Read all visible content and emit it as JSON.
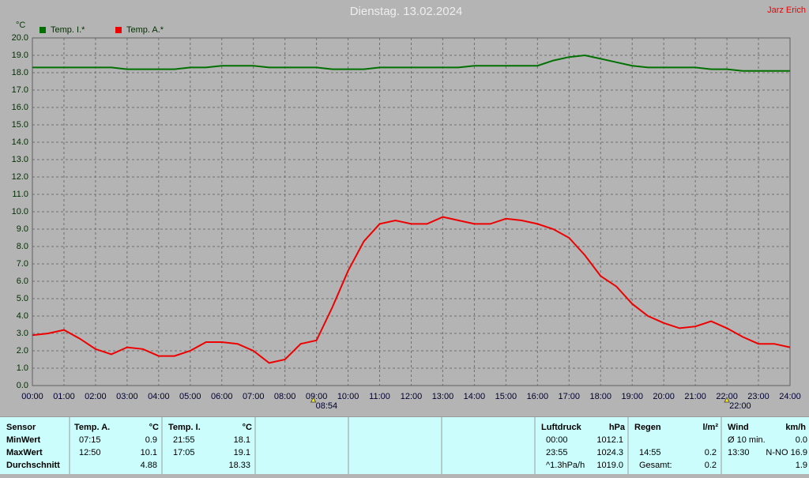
{
  "chart_data": {
    "type": "line",
    "title": "Dienstag. 13.02.2024",
    "author": "Jarz Erich",
    "y_unit": "°C",
    "x": [
      0,
      0.5,
      1,
      1.5,
      2,
      2.5,
      3,
      3.5,
      4,
      4.5,
      5,
      5.5,
      6,
      6.5,
      7,
      7.5,
      8,
      8.5,
      9,
      9.5,
      10,
      10.5,
      11,
      11.5,
      12,
      12.5,
      13,
      13.5,
      14,
      14.5,
      15,
      15.5,
      16,
      16.5,
      17,
      17.5,
      18,
      18.5,
      19,
      19.5,
      20,
      20.5,
      21,
      21.5,
      22,
      22.5,
      23,
      23.5,
      24
    ],
    "series": [
      {
        "name": "Temp. I.*",
        "color": "#007000",
        "values": [
          18.3,
          18.3,
          18.3,
          18.3,
          18.3,
          18.3,
          18.2,
          18.2,
          18.2,
          18.2,
          18.3,
          18.3,
          18.4,
          18.4,
          18.4,
          18.3,
          18.3,
          18.3,
          18.3,
          18.2,
          18.2,
          18.2,
          18.3,
          18.3,
          18.3,
          18.3,
          18.3,
          18.3,
          18.4,
          18.4,
          18.4,
          18.4,
          18.4,
          18.7,
          18.9,
          19.0,
          18.8,
          18.6,
          18.4,
          18.3,
          18.3,
          18.3,
          18.3,
          18.2,
          18.2,
          18.1,
          18.1,
          18.1,
          18.1
        ]
      },
      {
        "name": "Temp. A.*",
        "color": "#ee0000",
        "values": [
          2.9,
          3.0,
          3.2,
          2.7,
          2.1,
          1.8,
          2.2,
          2.1,
          1.7,
          1.7,
          2.0,
          2.5,
          2.5,
          2.4,
          2.0,
          1.3,
          1.5,
          2.4,
          2.6,
          4.5,
          6.6,
          8.3,
          9.3,
          9.5,
          9.3,
          9.3,
          9.7,
          9.5,
          9.3,
          9.3,
          9.6,
          9.5,
          9.3,
          9.0,
          8.5,
          7.5,
          6.3,
          5.7,
          4.7,
          4.0,
          3.6,
          3.3,
          3.4,
          3.7,
          3.3,
          2.8,
          2.4,
          2.4,
          2.2
        ]
      }
    ],
    "xlim": [
      0,
      24
    ],
    "xticks": [
      {
        "value": 0,
        "label": "00:00"
      },
      {
        "value": 1,
        "label": "01:00"
      },
      {
        "value": 2,
        "label": "02:00"
      },
      {
        "value": 3,
        "label": "03:00"
      },
      {
        "value": 4,
        "label": "04:00"
      },
      {
        "value": 5,
        "label": "05:00"
      },
      {
        "value": 6,
        "label": "06:00"
      },
      {
        "value": 7,
        "label": "07:00"
      },
      {
        "value": 8,
        "label": "08:00"
      },
      {
        "value": 9,
        "label": "09:00"
      },
      {
        "value": 10,
        "label": "10:00"
      },
      {
        "value": 11,
        "label": "11:00"
      },
      {
        "value": 12,
        "label": "12:00"
      },
      {
        "value": 13,
        "label": "13:00"
      },
      {
        "value": 14,
        "label": "14:00"
      },
      {
        "value": 15,
        "label": "15:00"
      },
      {
        "value": 16,
        "label": "16:00"
      },
      {
        "value": 17,
        "label": "17:00"
      },
      {
        "value": 18,
        "label": "18:00"
      },
      {
        "value": 19,
        "label": "19:00"
      },
      {
        "value": 20,
        "label": "20:00"
      },
      {
        "value": 21,
        "label": "21:00"
      },
      {
        "value": 22,
        "label": "22:00"
      },
      {
        "value": 23,
        "label": "23:00"
      },
      {
        "value": 24,
        "label": "24:00"
      }
    ],
    "ylim": [
      0,
      20
    ],
    "yticks": [
      {
        "value": 0,
        "label": "0.0"
      },
      {
        "value": 1,
        "label": "1.0"
      },
      {
        "value": 2,
        "label": "2.0"
      },
      {
        "value": 3,
        "label": "3.0"
      },
      {
        "value": 4,
        "label": "4.0"
      },
      {
        "value": 5,
        "label": "5.0"
      },
      {
        "value": 6,
        "label": "6.0"
      },
      {
        "value": 7,
        "label": "7.0"
      },
      {
        "value": 8,
        "label": "8.0"
      },
      {
        "value": 9,
        "label": "9.0"
      },
      {
        "value": 10,
        "label": "10.0"
      },
      {
        "value": 11,
        "label": "11.0"
      },
      {
        "value": 12,
        "label": "12.0"
      },
      {
        "value": 13,
        "label": "13.0"
      },
      {
        "value": 14,
        "label": "14.0"
      },
      {
        "value": 15,
        "label": "15.0"
      },
      {
        "value": 16,
        "label": "16.0"
      },
      {
        "value": 17,
        "label": "17.0"
      },
      {
        "value": 18,
        "label": "18.0"
      },
      {
        "value": 19,
        "label": "19.0"
      },
      {
        "value": 20,
        "label": "20.0"
      }
    ],
    "grid": true,
    "sunrise": {
      "value": 8.9,
      "label": "08:54"
    },
    "sunset": {
      "value": 22,
      "label": "22:00"
    }
  },
  "stats": {
    "sensor": {
      "header": "Sensor",
      "rows": [
        "MinWert",
        "MaxWert",
        "Durchschnitt"
      ]
    },
    "groups": [
      {
        "header": "Temp. A.",
        "unit": "°C",
        "rows": [
          {
            "time": "07:15",
            "value": "0.9"
          },
          {
            "time": "12:50",
            "value": "10.1"
          },
          {
            "value": "4.88"
          }
        ]
      },
      {
        "header": "Temp. I.",
        "unit": "°C",
        "rows": [
          {
            "time": "21:55",
            "value": "18.1"
          },
          {
            "time": "17:05",
            "value": "19.1"
          },
          {
            "value": "18.33"
          }
        ]
      },
      {
        "header": "Luftdruck",
        "unit": "hPa",
        "rows": [
          {
            "time": "00:00",
            "value": "1012.1"
          },
          {
            "time": "23:55",
            "value": "1024.3"
          },
          {
            "time": "^1.3hPa/h",
            "value": "1019.0"
          }
        ]
      },
      {
        "header": "Regen",
        "unit": "l/m²",
        "rows": [
          null,
          {
            "time": "14:55",
            "value": "0.2"
          },
          {
            "time": "Gesamt:",
            "value": "0.2"
          }
        ]
      },
      {
        "header": "Wind",
        "unit": "km/h",
        "rows": [
          {
            "time": "Ø 10 min.",
            "value": "0.0"
          },
          {
            "time": "13:30",
            "value": "N-NO 16.9"
          },
          {
            "value": "1.9"
          }
        ]
      }
    ]
  }
}
